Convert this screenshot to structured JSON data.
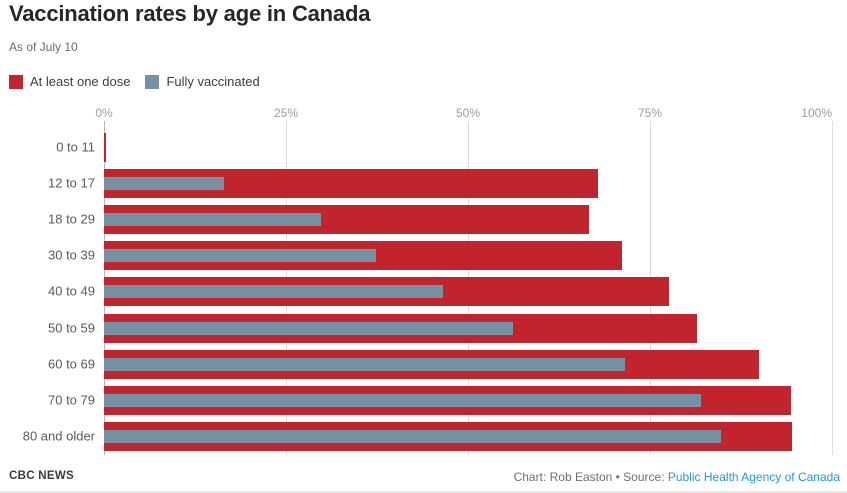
{
  "header": {
    "title": "Vaccination rates by age in Canada",
    "subtitle": "As of July 10"
  },
  "legend": [
    {
      "label": "At least one dose",
      "color": "#c2242e"
    },
    {
      "label": "Fully vaccinated",
      "color": "#7592a5"
    }
  ],
  "chart_data": {
    "type": "bar",
    "orientation": "horizontal",
    "title": "Vaccination rates by age in Canada",
    "subtitle": "As of July 10",
    "categories": [
      "0 to 11",
      "12 to 17",
      "18 to 29",
      "30 to 39",
      "40 to 49",
      "50 to 59",
      "60 to 69",
      "70 to 79",
      "80 and older"
    ],
    "series": [
      {
        "name": "At least one dose",
        "color": "#c2242e",
        "values": [
          0.3,
          67.9,
          66.6,
          71.2,
          77.6,
          81.4,
          90.0,
          94.3,
          94.5
        ]
      },
      {
        "name": "Fully vaccinated",
        "color": "#7592a5",
        "values": [
          0,
          16.5,
          29.8,
          37.4,
          46.5,
          56.2,
          71.5,
          82.0,
          84.8
        ]
      }
    ],
    "value_unit": "%",
    "x_ticks": [
      "0%",
      "25%",
      "50%",
      "75%",
      "100%"
    ],
    "xlim": [
      0,
      100
    ],
    "grid": true,
    "legend_position": "top-left"
  },
  "footer": {
    "brand": "CBC NEWS",
    "credit_prefix": "Chart: Rob Easton • Source: ",
    "source_link": "Public Health Agency of Canada",
    "link_color": "#1d9bd9"
  }
}
